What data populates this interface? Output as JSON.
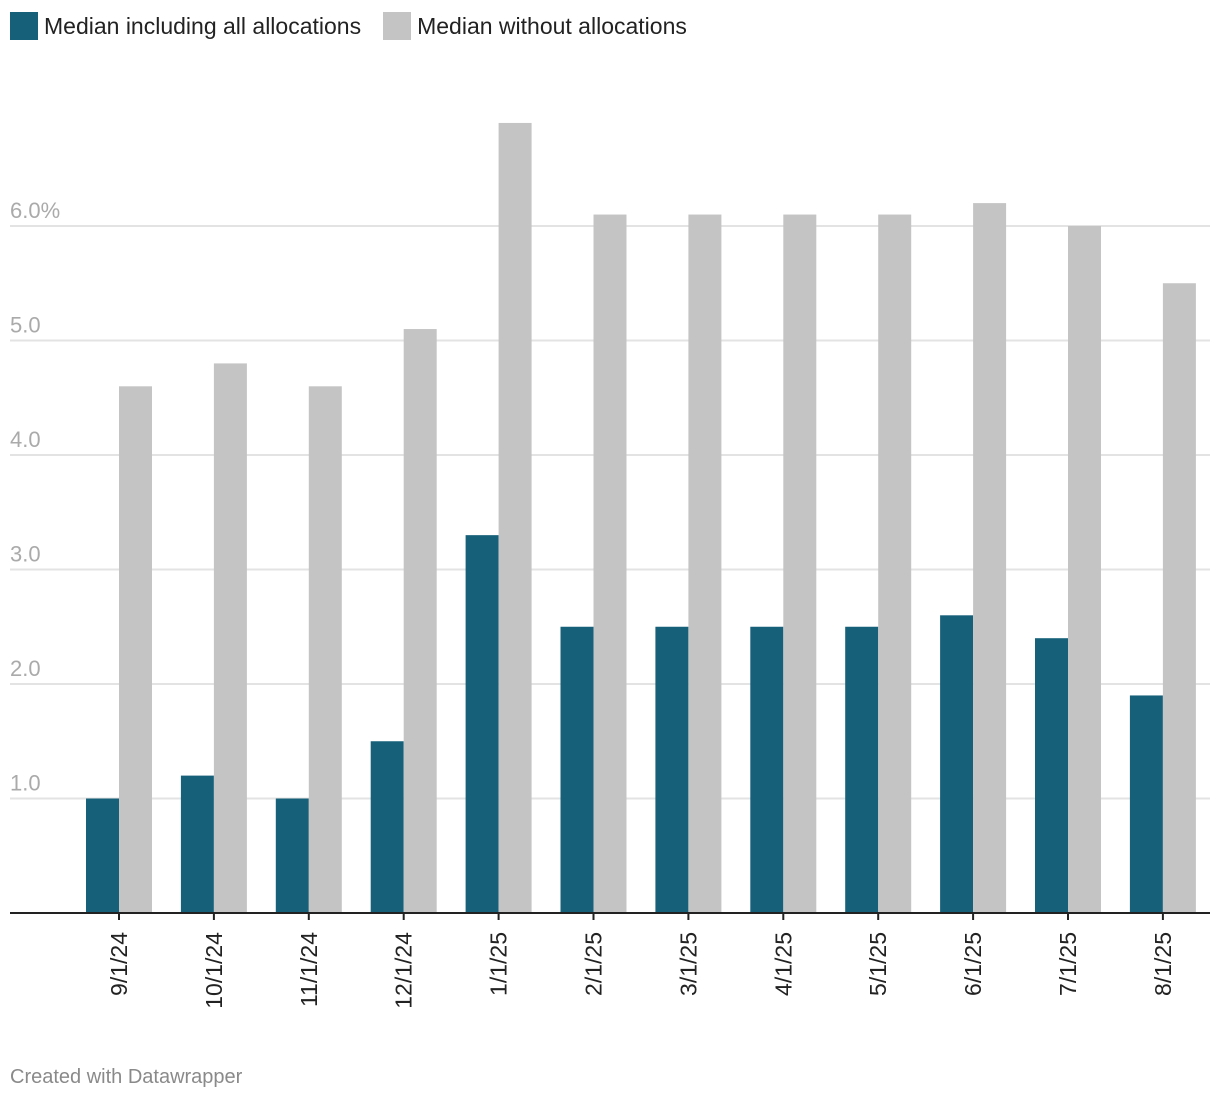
{
  "colors": {
    "series_including": "#17607a",
    "series_without": "#c4c4c4",
    "grid": "#e3e3e3",
    "axis": "#222222",
    "tick_label": "#aaaaaa",
    "category_label": "#222222"
  },
  "legend": {
    "items": [
      {
        "label": "Median including all allocations"
      },
      {
        "label": "Median without allocations"
      }
    ]
  },
  "footer": {
    "credit": "Created with Datawrapper"
  },
  "chart_data": {
    "type": "bar",
    "title": "",
    "xlabel": "",
    "ylabel": "",
    "ylim": [
      0,
      7
    ],
    "y_ticks": [
      {
        "value": 1,
        "label": "1.0"
      },
      {
        "value": 2,
        "label": "2.0"
      },
      {
        "value": 3,
        "label": "3.0"
      },
      {
        "value": 4,
        "label": "4.0"
      },
      {
        "value": 5,
        "label": "5.0"
      },
      {
        "value": 6,
        "label": "6.0%"
      }
    ],
    "categories": [
      "9/1/24",
      "10/1/24",
      "11/1/24",
      "12/1/24",
      "1/1/25",
      "2/1/25",
      "3/1/25",
      "4/1/25",
      "5/1/25",
      "6/1/25",
      "7/1/25",
      "8/1/25"
    ],
    "series": [
      {
        "name": "Median including all allocations",
        "values": [
          1.0,
          1.2,
          1.0,
          1.5,
          3.3,
          2.5,
          2.5,
          2.5,
          2.5,
          2.6,
          2.4,
          1.9
        ]
      },
      {
        "name": "Median without allocations",
        "values": [
          4.6,
          4.8,
          4.6,
          5.1,
          6.9,
          6.1,
          6.1,
          6.1,
          6.1,
          6.2,
          6.0,
          5.5
        ]
      }
    ]
  }
}
